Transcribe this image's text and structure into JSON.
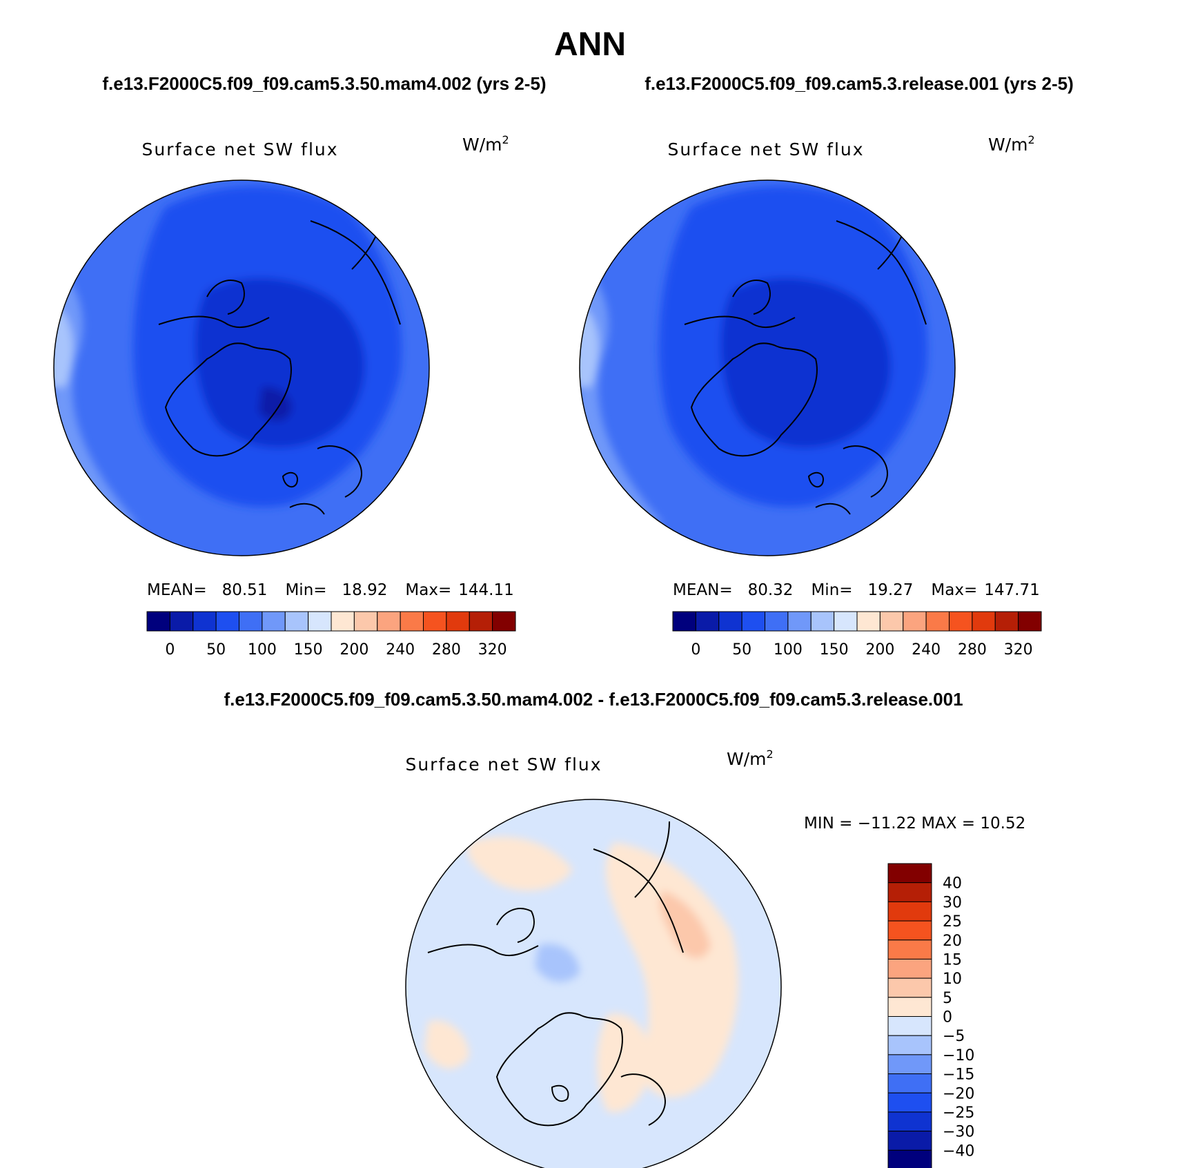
{
  "header": {
    "season": "ANN",
    "case_left": "f.e13.F2000C5.f09_f09.cam5.3.50.mam4.002 (yrs 2-5)",
    "case_right": "f.e13.F2000C5.f09_f09.cam5.3.release.001 (yrs 2-5)",
    "diff_title": "f.e13.F2000C5.f09_f09.cam5.3.50.mam4.002 - f.e13.F2000C5.f09_f09.cam5.3.release.001"
  },
  "panels": [
    {
      "id": "left",
      "variable": "Surface net SW flux",
      "units_base": "W/m",
      "units_exp": "2",
      "stats": {
        "mean_label": "MEAN=",
        "mean": "80.51",
        "min_label": "Min=",
        "min": "18.92",
        "max_label": "Max=",
        "max": "144.11"
      },
      "colorbar_ticks": [
        "0",
        "50",
        "100",
        "150",
        "200",
        "240",
        "280",
        "320"
      ],
      "levels": [
        0,
        25,
        50,
        75,
        100,
        125,
        150,
        175,
        200,
        220,
        240,
        260,
        280,
        300,
        320,
        340
      ]
    },
    {
      "id": "right",
      "variable": "Surface net SW flux",
      "units_base": "W/m",
      "units_exp": "2",
      "stats": {
        "mean_label": "MEAN=",
        "mean": "80.32",
        "min_label": "Min=",
        "min": "19.27",
        "max_label": "Max=",
        "max": "147.71"
      },
      "colorbar_ticks": [
        "0",
        "50",
        "100",
        "150",
        "200",
        "240",
        "280",
        "320"
      ],
      "levels": [
        0,
        25,
        50,
        75,
        100,
        125,
        150,
        175,
        200,
        220,
        240,
        260,
        280,
        300,
        320,
        340
      ]
    }
  ],
  "diff_panel": {
    "variable": "Surface net SW flux",
    "units_base": "W/m",
    "units_exp": "2",
    "stats_text": "MIN = −11.22  MAX =   10.52",
    "colorbar_ticks": [
      "40",
      "30",
      "25",
      "20",
      "15",
      "10",
      "5",
      "0",
      "−5",
      "−10",
      "−15",
      "−20",
      "−25",
      "−30",
      "−40"
    ]
  },
  "colormaps": {
    "abs": [
      "#00007d",
      "#0a1ba8",
      "#0f33d1",
      "#1e4ff0",
      "#3f6ff5",
      "#7098f9",
      "#a8c4fc",
      "#d7e6fd",
      "#fee7d3",
      "#fcc8ab",
      "#fba47f",
      "#fa7a48",
      "#f5531f",
      "#e13a0d",
      "#b51f06",
      "#820000"
    ],
    "diff": [
      "#820000",
      "#b51f06",
      "#e13a0d",
      "#f5531f",
      "#fa7a48",
      "#fba47f",
      "#fcc8ab",
      "#fee7d3",
      "#d7e6fd",
      "#a8c4fc",
      "#7098f9",
      "#3f6ff5",
      "#1e4ff0",
      "#0f33d1",
      "#0a1ba8",
      "#00007d"
    ]
  }
}
